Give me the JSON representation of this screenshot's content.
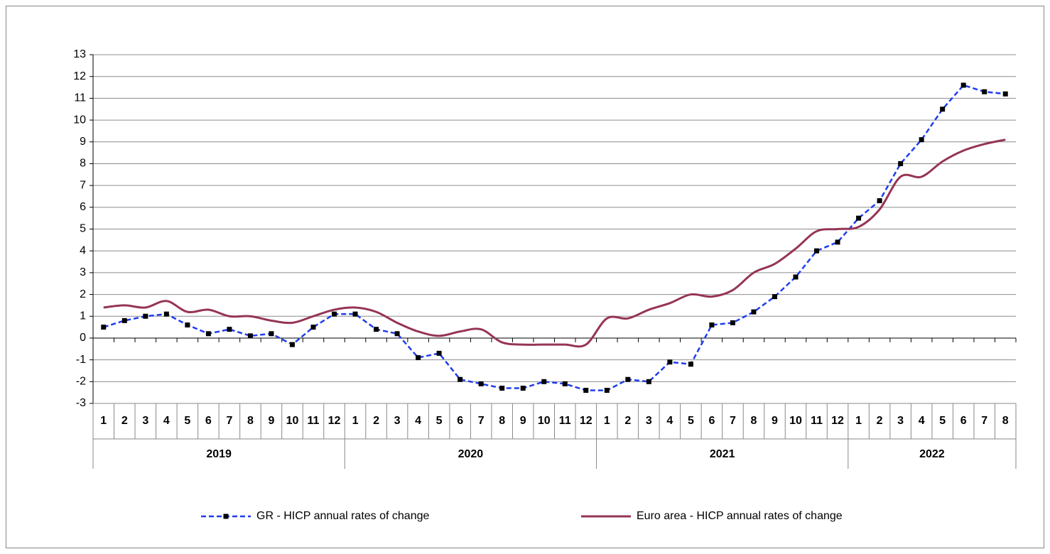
{
  "chart_data": {
    "type": "line",
    "categories": [
      [
        "1",
        "2019"
      ],
      [
        "2",
        "2019"
      ],
      [
        "3",
        "2019"
      ],
      [
        "4",
        "2019"
      ],
      [
        "5",
        "2019"
      ],
      [
        "6",
        "2019"
      ],
      [
        "7",
        "2019"
      ],
      [
        "8",
        "2019"
      ],
      [
        "9",
        "2019"
      ],
      [
        "10",
        "2019"
      ],
      [
        "11",
        "2019"
      ],
      [
        "12",
        "2019"
      ],
      [
        "1",
        "2020"
      ],
      [
        "2",
        "2020"
      ],
      [
        "3",
        "2020"
      ],
      [
        "4",
        "2020"
      ],
      [
        "5",
        "2020"
      ],
      [
        "6",
        "2020"
      ],
      [
        "7",
        "2020"
      ],
      [
        "8",
        "2020"
      ],
      [
        "9",
        "2020"
      ],
      [
        "10",
        "2020"
      ],
      [
        "11",
        "2020"
      ],
      [
        "12",
        "2020"
      ],
      [
        "1",
        "2021"
      ],
      [
        "2",
        "2021"
      ],
      [
        "3",
        "2021"
      ],
      [
        "4",
        "2021"
      ],
      [
        "5",
        "2021"
      ],
      [
        "6",
        "2021"
      ],
      [
        "7",
        "2021"
      ],
      [
        "8",
        "2021"
      ],
      [
        "9",
        "2021"
      ],
      [
        "10",
        "2021"
      ],
      [
        "11",
        "2021"
      ],
      [
        "12",
        "2021"
      ],
      [
        "1",
        "2022"
      ],
      [
        "2",
        "2022"
      ],
      [
        "3",
        "2022"
      ],
      [
        "4",
        "2022"
      ],
      [
        "5",
        "2022"
      ],
      [
        "6",
        "2022"
      ],
      [
        "7",
        "2022"
      ],
      [
        "8",
        "2022"
      ]
    ],
    "series": [
      {
        "name": "GR - HICP annual rates of change",
        "color": "#1f3cf0",
        "dashed": true,
        "markers": true,
        "smooth": false,
        "values": [
          0.5,
          0.8,
          1.0,
          1.1,
          0.6,
          0.2,
          0.4,
          0.1,
          0.2,
          -0.3,
          0.5,
          1.1,
          1.1,
          0.4,
          0.2,
          -0.9,
          -0.7,
          -1.9,
          -2.1,
          -2.3,
          -2.3,
          -2.0,
          -2.1,
          -2.4,
          -2.4,
          -1.9,
          -2.0,
          -1.1,
          -1.2,
          0.6,
          0.7,
          1.2,
          1.9,
          2.8,
          4.0,
          4.4,
          5.5,
          6.3,
          8.0,
          9.1,
          10.5,
          11.6,
          11.3,
          11.2
        ]
      },
      {
        "name": "Euro area - HICP annual rates of change",
        "color": "#953553",
        "dashed": false,
        "markers": false,
        "smooth": true,
        "values": [
          1.4,
          1.5,
          1.4,
          1.7,
          1.2,
          1.3,
          1.0,
          1.0,
          0.8,
          0.7,
          1.0,
          1.3,
          1.4,
          1.2,
          0.7,
          0.3,
          0.1,
          0.3,
          0.4,
          -0.2,
          -0.3,
          -0.3,
          -0.3,
          -0.3,
          0.9,
          0.9,
          1.3,
          1.6,
          2.0,
          1.9,
          2.2,
          3.0,
          3.4,
          4.1,
          4.9,
          5.0,
          5.1,
          5.9,
          7.4,
          7.4,
          8.1,
          8.6,
          8.9,
          9.1
        ]
      }
    ],
    "ylim": [
      -3,
      13
    ],
    "yticks": [
      -3,
      -2,
      -1,
      0,
      1,
      2,
      3,
      4,
      5,
      6,
      7,
      8,
      9,
      10,
      11,
      12,
      13
    ],
    "grid": true,
    "legend": "bottom"
  }
}
